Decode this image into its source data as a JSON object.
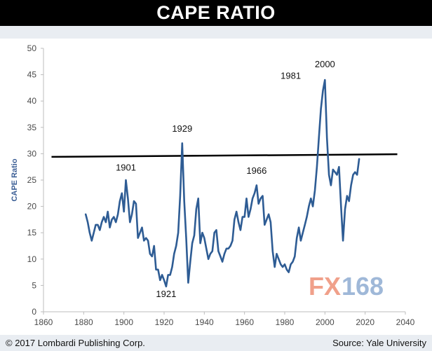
{
  "header": {
    "title": "CAPE RATIO"
  },
  "footer": {
    "copyright": "© 2017 Lombardi Publishing Corp.",
    "source": "Source: Yale University"
  },
  "watermark": {
    "prefix": "FX",
    "suffix": "168"
  },
  "colors": {
    "series": "#2e5c94",
    "threshold": "#000000",
    "title_bg": "#000000"
  },
  "chart_data": {
    "type": "line",
    "title": "",
    "xlabel": "",
    "ylabel": "CAPE Ratio",
    "xlim": [
      1860,
      2040
    ],
    "ylim": [
      0,
      50
    ],
    "xticks": [
      1860,
      1880,
      1900,
      1920,
      1940,
      1960,
      1980,
      2000,
      2020,
      2040
    ],
    "yticks": [
      0,
      5,
      10,
      15,
      20,
      25,
      30,
      35,
      40,
      45,
      50
    ],
    "grid": false,
    "legend": "none",
    "series": [
      {
        "x": [
          1881,
          1882,
          1883,
          1884,
          1885,
          1886,
          1887,
          1888,
          1889,
          1890,
          1891,
          1892,
          1893,
          1894,
          1895,
          1896,
          1897,
          1898,
          1899,
          1900,
          1901,
          1902,
          1903,
          1904,
          1905,
          1906,
          1907,
          1908,
          1909,
          1910,
          1911,
          1912,
          1913,
          1914,
          1915,
          1916,
          1917,
          1918,
          1919,
          1920,
          1921,
          1922,
          1923,
          1924,
          1925,
          1926,
          1927,
          1928,
          1929,
          1930,
          1931,
          1932,
          1933,
          1934,
          1935,
          1936,
          1937,
          1938,
          1939,
          1940,
          1941,
          1942,
          1943,
          1944,
          1945,
          1946,
          1947,
          1948,
          1949,
          1950,
          1951,
          1952,
          1953,
          1954,
          1955,
          1956,
          1957,
          1958,
          1959,
          1960,
          1961,
          1962,
          1963,
          1964,
          1965,
          1966,
          1967,
          1968,
          1969,
          1970,
          1971,
          1972,
          1973,
          1974,
          1975,
          1976,
          1977,
          1978,
          1979,
          1980,
          1981,
          1982,
          1983,
          1984,
          1985,
          1986,
          1987,
          1988,
          1989,
          1990,
          1991,
          1992,
          1993,
          1994,
          1995,
          1996,
          1997,
          1998,
          1999,
          2000,
          2001,
          2002,
          2003,
          2004,
          2005,
          2006,
          2007,
          2008,
          2009,
          2010,
          2011,
          2012,
          2013,
          2014,
          2015,
          2016,
          2017
        ],
        "values": [
          18.5,
          17.0,
          15.0,
          13.5,
          15.0,
          16.5,
          16.5,
          15.5,
          17.0,
          18.0,
          17.0,
          19.0,
          16.0,
          17.5,
          18.0,
          17.0,
          18.5,
          21.0,
          22.5,
          19.0,
          25.0,
          21.5,
          17.0,
          18.5,
          21.0,
          20.5,
          14.0,
          15.0,
          16.0,
          13.5,
          14.0,
          13.5,
          11.0,
          10.5,
          12.5,
          8.0,
          8.0,
          6.0,
          7.0,
          6.0,
          4.8,
          7.0,
          7.0,
          8.5,
          11.0,
          12.5,
          15.0,
          22.0,
          32.0,
          21.0,
          14.0,
          5.5,
          9.5,
          13.0,
          14.5,
          19.5,
          21.5,
          13.0,
          15.0,
          14.0,
          12.0,
          10.0,
          11.0,
          11.5,
          15.0,
          15.5,
          11.5,
          10.5,
          9.5,
          11.0,
          12.0,
          12.0,
          12.5,
          13.5,
          17.5,
          19.0,
          17.0,
          15.5,
          18.0,
          18.0,
          21.5,
          18.0,
          19.5,
          21.5,
          22.5,
          24.0,
          20.5,
          21.5,
          22.0,
          16.5,
          17.5,
          18.5,
          17.0,
          11.5,
          8.5,
          11.0,
          10.0,
          9.0,
          8.5,
          9.0,
          8.0,
          7.5,
          9.0,
          9.5,
          10.5,
          14.0,
          16.0,
          13.5,
          15.0,
          16.5,
          18.0,
          20.0,
          21.5,
          20.0,
          23.0,
          27.5,
          33.0,
          38.5,
          42.0,
          44.0,
          33.0,
          26.0,
          24.0,
          27.0,
          26.5,
          26.0,
          27.5,
          20.0,
          13.5,
          19.5,
          22.0,
          21.0,
          24.0,
          26.0,
          26.5,
          26.0,
          29.0
        ]
      }
    ],
    "reference_line": {
      "x": [
        1864,
        2036
      ],
      "y": [
        29.4,
        29.9
      ]
    },
    "annotations": [
      {
        "label": "1901",
        "x": 1901,
        "y": 26.8
      },
      {
        "label": "1921",
        "x": 1921,
        "y": 2.8
      },
      {
        "label": "1929",
        "x": 1929,
        "y": 34.2
      },
      {
        "label": "1966",
        "x": 1966,
        "y": 26.2
      },
      {
        "label": "1981",
        "x": 1983,
        "y": 44.2
      },
      {
        "label": "2000",
        "x": 2000,
        "y": 46.4
      }
    ]
  }
}
